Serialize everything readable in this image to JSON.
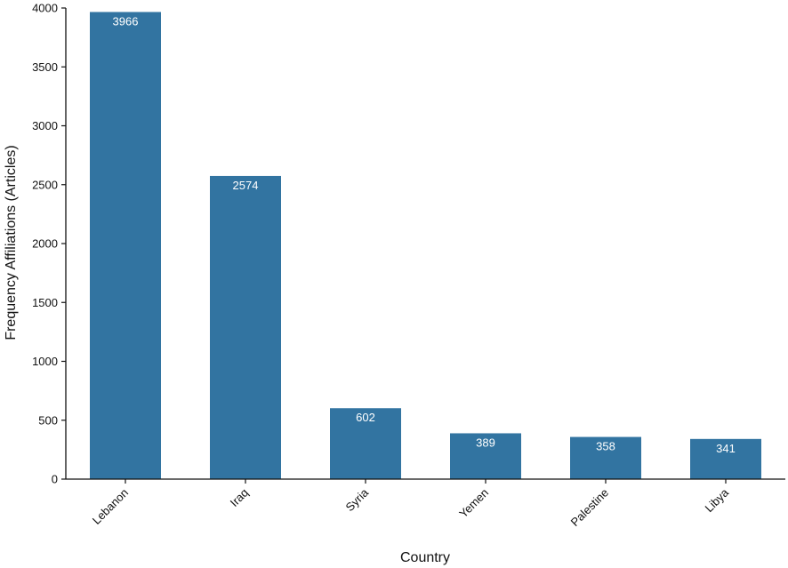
{
  "chart_data": {
    "type": "bar",
    "title": "",
    "xlabel": "Country",
    "ylabel": "Frequency Affiliations (Articles)",
    "categories": [
      "Lebanon",
      "Iraq",
      "Syria",
      "Yemen",
      "Palestine",
      "Libya"
    ],
    "values": [
      3966,
      2574,
      602,
      389,
      358,
      341
    ],
    "data_labels": [
      "3966",
      "2574",
      "602",
      "389",
      "358",
      "341"
    ],
    "ylim": [
      0,
      4000
    ],
    "yticks": [
      0,
      500,
      1000,
      1500,
      2000,
      2500,
      3000,
      3500,
      4000
    ],
    "grid": false,
    "legend": "none",
    "bar_color": "#3274a1"
  }
}
